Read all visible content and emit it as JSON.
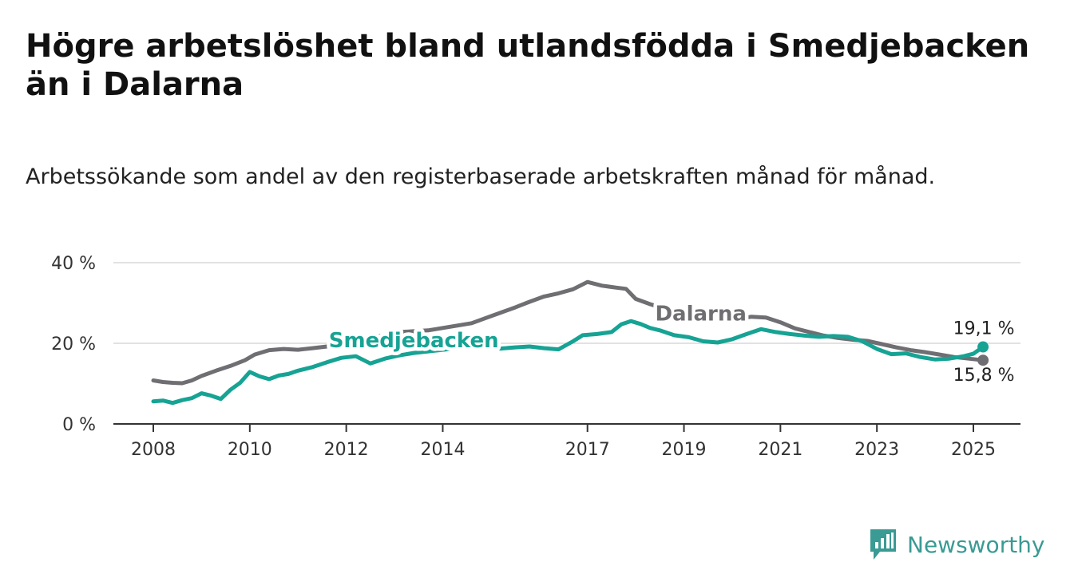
{
  "title": "Högre arbetslöshet bland utlandsfödda i Smedjebacken än i Dalarna",
  "subtitle": "Arbetssökande som andel av den registerbaserade arbetskraften månad för månad.",
  "logo_text": "Newsworthy",
  "colors": {
    "smedjebacken": "#16a394",
    "dalarna": "#6f6f73",
    "grid": "#d9d9d9",
    "axis": "#333333"
  },
  "chart_data": {
    "type": "line",
    "title": "Högre arbetslöshet bland utlandsfödda i Smedjebacken än i Dalarna",
    "subtitle": "Arbetssökande som andel av den registerbaserade arbetskraften månad för månad.",
    "xlabel": "",
    "ylabel": "",
    "xlim": [
      2008.0,
      2026.0
    ],
    "ylim": [
      0,
      40
    ],
    "y_ticks": [
      0,
      20,
      40
    ],
    "y_tick_labels": [
      "0 %",
      "20 %",
      "40 %"
    ],
    "x_ticks": [
      2008,
      2010,
      2012,
      2014,
      2017,
      2019,
      2021,
      2023,
      2025
    ],
    "x_tick_labels": [
      "2008",
      "2010",
      "2012",
      "2014",
      "2017",
      "2019",
      "2021",
      "2023",
      "2025"
    ],
    "grid": true,
    "series": [
      {
        "name": "Dalarna",
        "end_label": "15,8 %",
        "x": [
          2008.0,
          2008.2,
          2008.4,
          2008.6,
          2008.8,
          2009.0,
          2009.3,
          2009.6,
          2009.9,
          2010.1,
          2010.4,
          2010.7,
          2011.0,
          2011.3,
          2011.6,
          2011.9,
          2012.2,
          2012.5,
          2012.8,
          2013.1,
          2013.4,
          2013.7,
          2014.0,
          2014.3,
          2014.6,
          2014.9,
          2015.2,
          2015.5,
          2015.8,
          2016.1,
          2016.4,
          2016.7,
          2017.0,
          2017.3,
          2017.6,
          2017.8,
          2018.0,
          2018.3,
          2018.6,
          2018.9,
          2019.2,
          2019.5,
          2019.8,
          2020.1,
          2020.4,
          2020.7,
          2021.0,
          2021.3,
          2021.6,
          2021.9,
          2022.2,
          2022.5,
          2022.8,
          2023.1,
          2023.4,
          2023.7,
          2024.0,
          2024.3,
          2024.6,
          2024.9,
          2025.2
        ],
        "values": [
          10.8,
          10.4,
          10.2,
          10.1,
          10.8,
          11.9,
          13.2,
          14.4,
          15.8,
          17.2,
          18.3,
          18.6,
          18.4,
          18.8,
          19.2,
          19.7,
          20.5,
          21.3,
          22.1,
          22.8,
          23.0,
          23.2,
          23.8,
          24.4,
          25.0,
          26.3,
          27.6,
          28.9,
          30.3,
          31.6,
          32.4,
          33.4,
          35.2,
          34.3,
          33.8,
          33.5,
          31.0,
          29.7,
          28.6,
          27.5,
          26.4,
          26.0,
          25.7,
          26.0,
          26.6,
          26.4,
          25.2,
          23.7,
          22.8,
          21.9,
          21.3,
          20.9,
          20.6,
          19.8,
          19.0,
          18.3,
          17.8,
          17.2,
          16.6,
          16.2,
          15.8
        ]
      },
      {
        "name": "Smedjebacken",
        "end_label": "19,1 %",
        "x": [
          2008.0,
          2008.2,
          2008.4,
          2008.6,
          2008.8,
          2009.0,
          2009.2,
          2009.4,
          2009.6,
          2009.8,
          2010.0,
          2010.2,
          2010.4,
          2010.6,
          2010.8,
          2011.0,
          2011.3,
          2011.6,
          2011.9,
          2012.2,
          2012.5,
          2012.8,
          2013.1,
          2013.4,
          2013.7,
          2014.0,
          2014.3,
          2014.6,
          2014.9,
          2015.2,
          2015.5,
          2015.8,
          2016.1,
          2016.4,
          2016.7,
          2016.9,
          2017.2,
          2017.5,
          2017.7,
          2017.9,
          2018.1,
          2018.3,
          2018.5,
          2018.8,
          2019.1,
          2019.4,
          2019.7,
          2020.0,
          2020.3,
          2020.6,
          2020.9,
          2021.2,
          2021.5,
          2021.8,
          2022.1,
          2022.4,
          2022.7,
          2023.0,
          2023.3,
          2023.6,
          2023.9,
          2024.2,
          2024.5,
          2024.8,
          2025.0,
          2025.2
        ],
        "values": [
          5.6,
          5.8,
          5.2,
          5.9,
          6.4,
          7.6,
          7.0,
          6.2,
          8.5,
          10.2,
          12.9,
          11.8,
          11.1,
          12.0,
          12.4,
          13.2,
          14.1,
          15.3,
          16.4,
          16.8,
          15.0,
          16.2,
          17.0,
          17.6,
          18.0,
          18.4,
          18.8,
          19.0,
          19.1,
          18.7,
          19.0,
          19.2,
          18.8,
          18.5,
          20.5,
          22.0,
          22.3,
          22.8,
          24.7,
          25.5,
          24.8,
          23.8,
          23.2,
          22.0,
          21.5,
          20.5,
          20.2,
          21.0,
          22.3,
          23.5,
          22.8,
          22.3,
          21.9,
          21.6,
          21.8,
          21.6,
          20.5,
          18.6,
          17.3,
          17.5,
          16.6,
          16.0,
          16.2,
          16.8,
          17.4,
          19.1
        ]
      }
    ],
    "annotations": [
      {
        "text": "Dalarna",
        "series": "Dalarna"
      },
      {
        "text": "Smedjebacken",
        "series": "Smedjebacken"
      }
    ]
  }
}
